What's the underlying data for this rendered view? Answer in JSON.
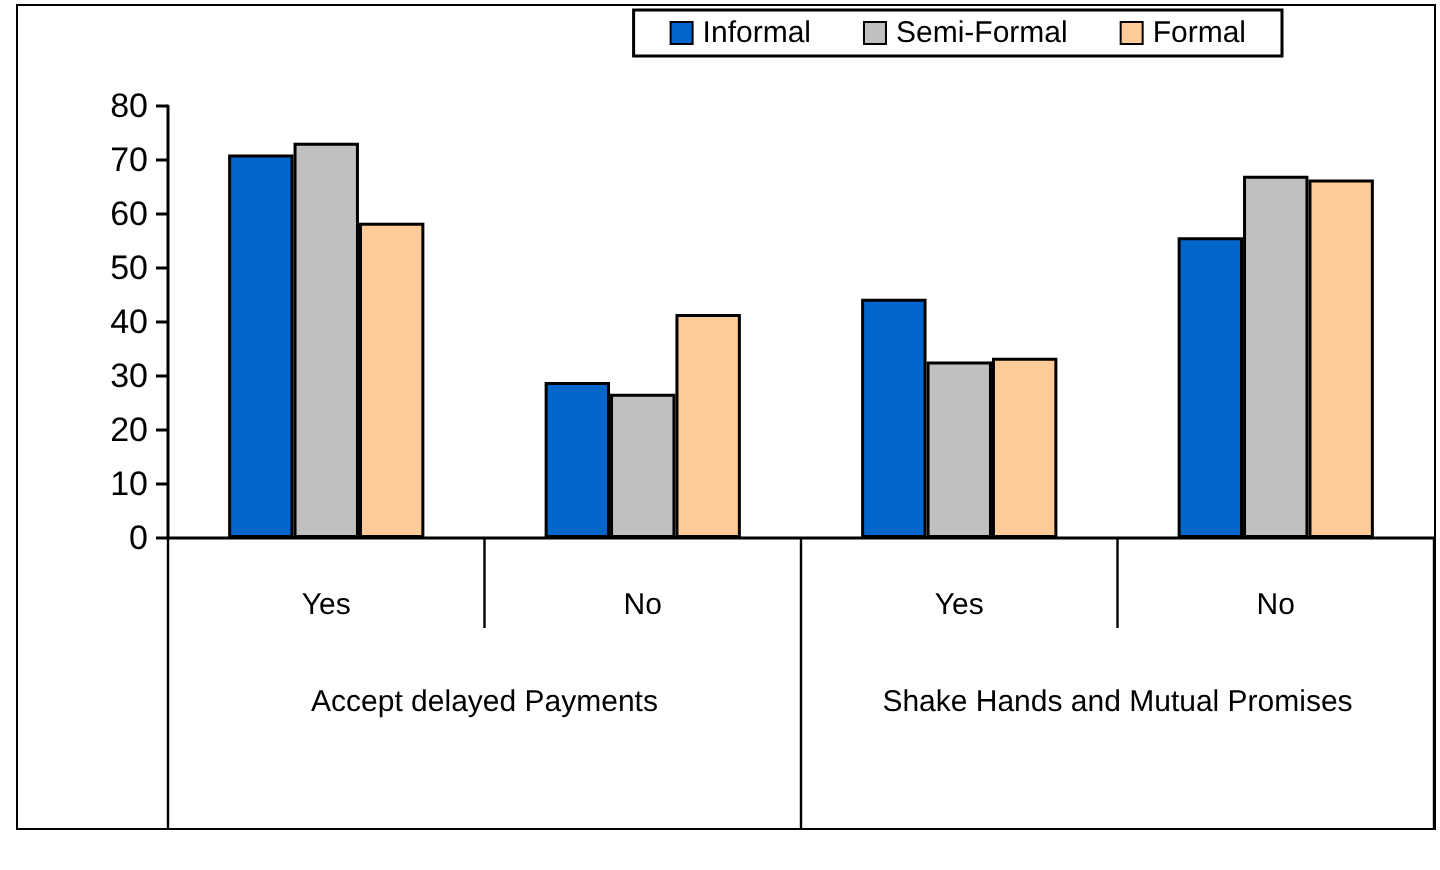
{
  "chart_data": {
    "type": "bar",
    "categories": [
      "Yes",
      "No",
      "Yes",
      "No"
    ],
    "series": [
      {
        "name": "Informal",
        "color": "#0066cc",
        "values": [
          71,
          28.9,
          44.3,
          55.7
        ]
      },
      {
        "name": "Semi-Formal",
        "color": "#c0c0c0",
        "values": [
          73.2,
          26.7,
          32.7,
          67.1
        ]
      },
      {
        "name": "Formal",
        "color": "#ffcc99",
        "values": [
          58.4,
          41.5,
          33.4,
          66.4
        ]
      }
    ],
    "annotations": [
      "Accept delayed Payments",
      "Shake Hands and Mutual Promises"
    ],
    "ylim": [
      0,
      80
    ],
    "yticks": [
      0,
      10,
      20,
      30,
      40,
      50,
      60,
      70,
      80
    ],
    "grid": false,
    "legend": "top right"
  }
}
